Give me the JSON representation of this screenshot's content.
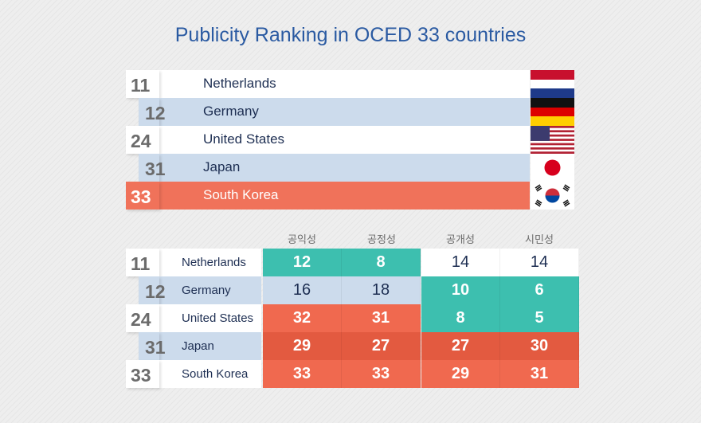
{
  "title": "Publicity Ranking in OCED 33 countries",
  "colors": {
    "accent_blue": "#2a5aa2",
    "teal": "#3dbfaf",
    "light_blue": "#ccdbec",
    "orange": "#f0694f",
    "highlight": "#f0725a"
  },
  "chart_data": [
    {
      "type": "bar",
      "title": "Publicity Ranking in OCED 33 countries",
      "categories": [
        "Netherlands",
        "Germany",
        "United States",
        "Japan",
        "South Korea"
      ],
      "values": [
        11,
        12,
        24,
        31,
        33
      ],
      "rank_labels": [
        "11",
        "12",
        "24",
        "31",
        "33"
      ],
      "flags": [
        "netherlands-flag-icon",
        "germany-flag-icon",
        "us-flag-icon",
        "japan-flag-icon",
        "korea-flag-icon"
      ],
      "highlight": "South Korea"
    },
    {
      "type": "table",
      "columns": [
        "공익성",
        "공정성",
        "공개성",
        "시민성"
      ],
      "rows": [
        {
          "rank": "11",
          "country": "Netherlands",
          "values": [
            "12",
            "8",
            "14",
            "14"
          ]
        },
        {
          "rank": "12",
          "country": "Germany",
          "values": [
            "16",
            "18",
            "10",
            "6"
          ]
        },
        {
          "rank": "24",
          "country": "United States",
          "values": [
            "32",
            "31",
            "8",
            "5"
          ]
        },
        {
          "rank": "31",
          "country": "Japan",
          "values": [
            "29",
            "27",
            "27",
            "30"
          ]
        },
        {
          "rank": "33",
          "country": "South Korea",
          "values": [
            "33",
            "33",
            "29",
            "31"
          ]
        }
      ]
    }
  ]
}
